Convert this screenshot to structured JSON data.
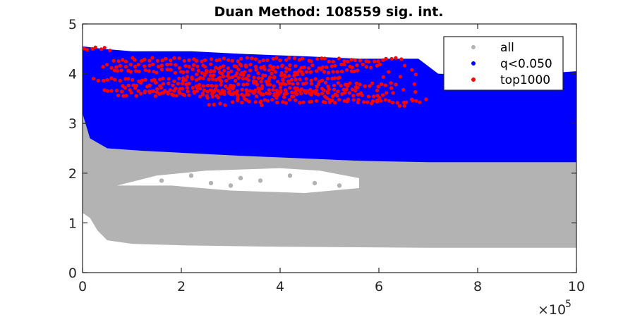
{
  "chart_data": {
    "type": "scatter",
    "title": "Duan Method: 108559 sig. int.",
    "xlabel": "",
    "ylabel": "",
    "xlim": [
      0,
      1000000
    ],
    "ylim": [
      0,
      5
    ],
    "x_ticks": [
      0,
      200000,
      400000,
      600000,
      800000,
      1000000
    ],
    "x_tick_labels": [
      "0",
      "2",
      "4",
      "6",
      "8",
      "10"
    ],
    "x_exponent_multiplier": "×10",
    "x_exponent_power": "5",
    "y_ticks": [
      0,
      1,
      2,
      3,
      4,
      5
    ],
    "y_tick_labels": [
      "0",
      "1",
      "2",
      "3",
      "4",
      "5"
    ],
    "grid": false,
    "legend_position": "top-right",
    "series": [
      {
        "name": "all",
        "color": "#b3b3b3",
        "description_points": [
          [
            2000,
            1.0
          ],
          [
            2000,
            3.9
          ],
          [
            20000,
            0.9
          ],
          [
            20000,
            3.7
          ],
          [
            50000,
            0.6
          ],
          [
            50000,
            3.0
          ],
          [
            100000,
            0.55
          ],
          [
            100000,
            2.8
          ],
          [
            200000,
            0.5
          ],
          [
            200000,
            2.6
          ],
          [
            400000,
            0.5
          ],
          [
            400000,
            2.5
          ],
          [
            600000,
            0.5
          ],
          [
            600000,
            2.5
          ],
          [
            800000,
            0.5
          ],
          [
            800000,
            2.4
          ],
          [
            1000000,
            0.5
          ],
          [
            1000000,
            2.3
          ]
        ]
      },
      {
        "name": "q<0.050",
        "color": "#0000ff",
        "description_points": [
          [
            0,
            2.3
          ],
          [
            0,
            4.5
          ],
          [
            50000,
            2.5
          ],
          [
            50000,
            4.45
          ],
          [
            150000,
            2.45
          ],
          [
            150000,
            4.4
          ],
          [
            320000,
            2.35
          ],
          [
            320000,
            4.35
          ],
          [
            500000,
            2.3
          ],
          [
            500000,
            4.3
          ],
          [
            700000,
            2.25
          ],
          [
            700000,
            3.9
          ],
          [
            1000000,
            2.2
          ],
          [
            1000000,
            4.0
          ]
        ]
      },
      {
        "name": "top1000",
        "color": "#ff0000",
        "description_points": [
          [
            0,
            4.5
          ],
          [
            40000,
            4.45
          ],
          [
            100000,
            4.3
          ],
          [
            200000,
            4.25
          ],
          [
            300000,
            4.2
          ],
          [
            400000,
            4.15
          ],
          [
            500000,
            4.2
          ],
          [
            650000,
            4.3
          ],
          [
            700000,
            3.35
          ],
          [
            100000,
            3.6
          ],
          [
            300000,
            3.55
          ],
          [
            500000,
            3.45
          ]
        ]
      }
    ]
  }
}
